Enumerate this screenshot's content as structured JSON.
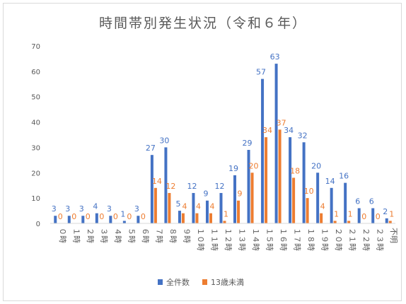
{
  "chart_data": {
    "type": "bar",
    "title": "時間帯別発生状況（令和６年）",
    "categories": [
      "０時",
      "１時",
      "２時",
      "３時",
      "４時",
      "５時",
      "６時",
      "７時",
      "８時",
      "９時",
      "１０時",
      "１１時",
      "１２時",
      "１３時",
      "１４時",
      "１５時",
      "１６時",
      "１７時",
      "１８時",
      "１９時",
      "２０時",
      "２１時",
      "２２時",
      "２３時",
      "不明"
    ],
    "series": [
      {
        "name": "全件数",
        "color": "#4472c4",
        "values": [
          3,
          3,
          3,
          4,
          3,
          1,
          3,
          27,
          30,
          5,
          12,
          9,
          12,
          19,
          29,
          57,
          63,
          34,
          32,
          20,
          14,
          16,
          6,
          6,
          2
        ]
      },
      {
        "name": "13歳未満",
        "color": "#ed7d31",
        "values": [
          0,
          0,
          0,
          0,
          0,
          0,
          0,
          14,
          12,
          4,
          4,
          4,
          1,
          9,
          20,
          34,
          37,
          18,
          10,
          4,
          1,
          1,
          0,
          0,
          1
        ]
      }
    ],
    "ylim": [
      0,
      70
    ],
    "yticks": [
      0,
      10,
      20,
      30,
      40,
      50,
      60,
      70
    ],
    "grid": false,
    "legend_position": "bottom"
  }
}
